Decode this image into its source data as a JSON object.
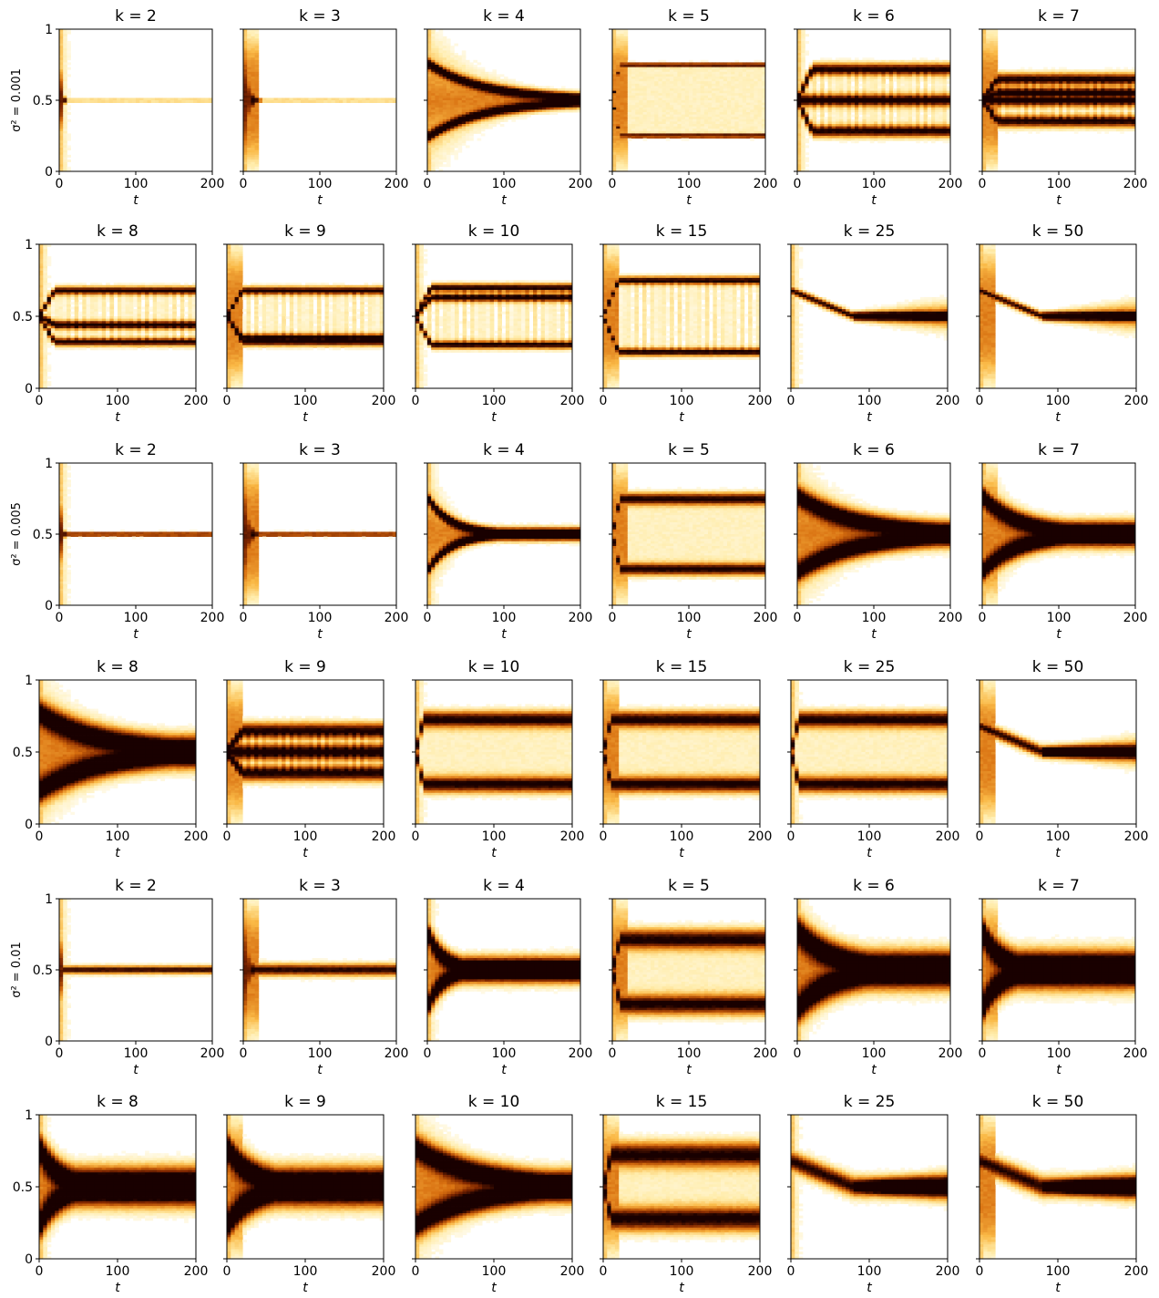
{
  "chart_data": {
    "type": "heatmap",
    "description_colormap": "afmhot_r",
    "colors": {
      "low": "#ffffff",
      "mid1": "#ffd36b",
      "mid2": "#e07a10",
      "mid3": "#8a2a00",
      "high": "#1a0000"
    },
    "xlabel": "t",
    "xlim": [
      0,
      200
    ],
    "ylim": [
      0,
      1
    ],
    "xticks": [
      "0",
      "100",
      "200"
    ],
    "yticks": [
      "0",
      "0.5",
      "1"
    ],
    "row_groups": [
      {
        "ylabel": "σ² = 0.001",
        "panels": [
          {
            "k_label": "k = 2",
            "pattern": "converge",
            "conv_t": 5,
            "band": 0.005
          },
          {
            "k_label": "k = 3",
            "pattern": "converge",
            "conv_t": 12,
            "band": 0.005
          },
          {
            "k_label": "k = 4",
            "pattern": "slow_converge",
            "conv_t": 200,
            "band": 0.02
          },
          {
            "k_label": "k = 5",
            "pattern": "two_lines",
            "levels": [
              0.25,
              0.75
            ],
            "band": 0.01
          },
          {
            "k_label": "k = 6",
            "pattern": "multi",
            "levels": [
              0.28,
              0.5,
              0.72
            ],
            "band": 0.03
          },
          {
            "k_label": "k = 7",
            "pattern": "multi",
            "levels": [
              0.35,
              0.5,
              0.55,
              0.65
            ],
            "band": 0.03
          },
          {
            "k_label": "k = 8",
            "pattern": "multi",
            "levels": [
              0.32,
              0.44,
              0.68
            ],
            "band": 0.02
          },
          {
            "k_label": "k = 9",
            "pattern": "multi",
            "levels": [
              0.32,
              0.35,
              0.68
            ],
            "band": 0.02
          },
          {
            "k_label": "k = 10",
            "pattern": "multi",
            "levels": [
              0.3,
              0.63,
              0.7
            ],
            "band": 0.02
          },
          {
            "k_label": "k = 15",
            "pattern": "multi",
            "levels": [
              0.25,
              0.75
            ],
            "band": 0.02
          },
          {
            "k_label": "k = 25",
            "pattern": "zigzag",
            "band": 0.02
          },
          {
            "k_label": "k = 50",
            "pattern": "zigzag",
            "band": 0.02
          }
        ]
      },
      {
        "ylabel": "σ² = 0.005",
        "panels": [
          {
            "k_label": "k = 2",
            "pattern": "converge",
            "conv_t": 5,
            "band": 0.01
          },
          {
            "k_label": "k = 3",
            "pattern": "converge",
            "conv_t": 12,
            "band": 0.01
          },
          {
            "k_label": "k = 4",
            "pattern": "slow_converge",
            "conv_t": 80,
            "band": 0.02
          },
          {
            "k_label": "k = 5",
            "pattern": "two_lines",
            "levels": [
              0.25,
              0.75
            ],
            "band": 0.03
          },
          {
            "k_label": "k = 6",
            "pattern": "slow_converge",
            "conv_t": 200,
            "band": 0.04
          },
          {
            "k_label": "k = 7",
            "pattern": "slow_converge",
            "conv_t": 120,
            "band": 0.04
          },
          {
            "k_label": "k = 8",
            "pattern": "slow_converge",
            "conv_t": 200,
            "band": 0.05
          },
          {
            "k_label": "k = 9",
            "pattern": "multi",
            "levels": [
              0.35,
              0.5,
              0.65
            ],
            "band": 0.04
          },
          {
            "k_label": "k = 10",
            "pattern": "two_lines",
            "levels": [
              0.27,
              0.73
            ],
            "band": 0.04
          },
          {
            "k_label": "k = 15",
            "pattern": "two_lines",
            "levels": [
              0.27,
              0.73
            ],
            "band": 0.04
          },
          {
            "k_label": "k = 25",
            "pattern": "two_lines",
            "levels": [
              0.27,
              0.73
            ],
            "band": 0.04
          },
          {
            "k_label": "k = 50",
            "pattern": "zigzag",
            "band": 0.03
          }
        ]
      },
      {
        "ylabel": "σ² = 0.01",
        "panels": [
          {
            "k_label": "k = 2",
            "pattern": "converge",
            "conv_t": 5,
            "band": 0.02
          },
          {
            "k_label": "k = 3",
            "pattern": "converge",
            "conv_t": 12,
            "band": 0.03
          },
          {
            "k_label": "k = 4",
            "pattern": "slow_converge",
            "conv_t": 50,
            "band": 0.04
          },
          {
            "k_label": "k = 5",
            "pattern": "two_lines",
            "levels": [
              0.25,
              0.72
            ],
            "band": 0.05
          },
          {
            "k_label": "k = 6",
            "pattern": "slow_converge",
            "conv_t": 120,
            "band": 0.06
          },
          {
            "k_label": "k = 7",
            "pattern": "slow_converge",
            "conv_t": 60,
            "band": 0.06
          },
          {
            "k_label": "k = 8",
            "pattern": "slow_converge",
            "conv_t": 60,
            "band": 0.06
          },
          {
            "k_label": "k = 9",
            "pattern": "slow_converge",
            "conv_t": 80,
            "band": 0.06
          },
          {
            "k_label": "k = 10",
            "pattern": "slow_converge",
            "conv_t": 200,
            "band": 0.05
          },
          {
            "k_label": "k = 15",
            "pattern": "two_lines",
            "levels": [
              0.27,
              0.73
            ],
            "band": 0.06
          },
          {
            "k_label": "k = 25",
            "pattern": "zigzag",
            "band": 0.05
          },
          {
            "k_label": "k = 50",
            "pattern": "zigzag",
            "band": 0.05
          }
        ]
      }
    ]
  }
}
